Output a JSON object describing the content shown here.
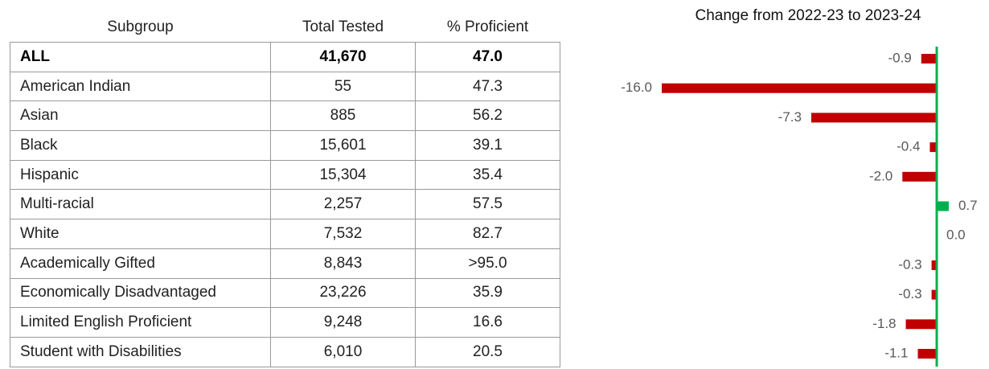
{
  "table": {
    "header": [
      "Subgroup",
      "Total Tested",
      "% Proficient"
    ],
    "rows": [
      [
        "ALL",
        "41,670",
        "47.0"
      ],
      [
        "American Indian",
        "55",
        "47.3"
      ],
      [
        "Asian",
        "885",
        "56.2"
      ],
      [
        "Black",
        "15,601",
        "39.1"
      ],
      [
        "Hispanic",
        "15,304",
        "35.4"
      ],
      [
        "Multi-racial",
        "2,257",
        "57.5"
      ],
      [
        "White",
        "7,532",
        "82.7"
      ],
      [
        "Academically Gifted",
        "8,843",
        ">95.0"
      ],
      [
        "Economically Disadvantaged",
        "23,226",
        "35.9"
      ],
      [
        "Limited English Proficient",
        "9,248",
        "16.6"
      ],
      [
        "Student with Disabilities",
        "6,010",
        "20.5"
      ]
    ]
  },
  "chart_data": {
    "type": "bar",
    "orientation": "horizontal",
    "title": "Change from 2022-23 to 2023-24",
    "values": [
      -0.9,
      -16.0,
      -7.3,
      -0.4,
      -2.0,
      0.7,
      0.0,
      -0.3,
      -0.3,
      -1.8,
      -1.1
    ],
    "value_labels": [
      "-0.9",
      "-16.0",
      "-7.3",
      "-0.4",
      "-2.0",
      "0.7",
      "0.0",
      "-0.3",
      "-0.3",
      "-1.8",
      "-1.1"
    ],
    "color": "#c00000",
    "positive_color": "#00b050",
    "axis_color": "#00b050"
  }
}
